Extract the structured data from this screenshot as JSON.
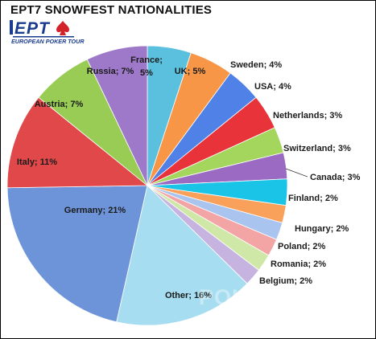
{
  "title": "EPT7 SNOWFEST NATIONALITIES",
  "logo": {
    "mark": "EPT",
    "tagline": "EUROPEAN POKER TOUR",
    "mark_color": "#1a3d8f",
    "accent_color": "#d2232a"
  },
  "watermark": "POKERNEWS",
  "chart_data": {
    "type": "pie",
    "title": "EPT7 SNOWFEST NATIONALITIES",
    "unit": "%",
    "slices": [
      {
        "label": "France",
        "value": 5,
        "color": "#5bc0de",
        "display": "France; 5%"
      },
      {
        "label": "UK",
        "value": 5,
        "color": "#f79646",
        "display": "UK; 5%"
      },
      {
        "label": "Sweden",
        "value": 4,
        "color": "#4f81e6",
        "display": "Sweden; 4%"
      },
      {
        "label": "USA",
        "value": 4,
        "color": "#e8333a",
        "display": "USA; 4%"
      },
      {
        "label": "Netherlands",
        "value": 3,
        "color": "#a4d65e",
        "display": "Netherlands; 3%"
      },
      {
        "label": "Switzerland",
        "value": 3,
        "color": "#9b6bc4",
        "display": "Switzerland; 3%"
      },
      {
        "label": "Canada",
        "value": 3,
        "color": "#19c4e6",
        "display": "Canada; 3%"
      },
      {
        "label": "Finland",
        "value": 2,
        "color": "#f9a15b",
        "display": "Finland; 2%"
      },
      {
        "label": "Hungary",
        "value": 2,
        "color": "#a9c4ef",
        "display": "Hungary; 2%"
      },
      {
        "label": "Poland",
        "value": 2,
        "color": "#f3a5a5",
        "display": "Poland; 2%"
      },
      {
        "label": "Romania",
        "value": 2,
        "color": "#cfe8a8",
        "display": "Romania; 2%"
      },
      {
        "label": "Belgium",
        "value": 2,
        "color": "#c6b3e0",
        "display": "Belgium; 2%"
      },
      {
        "label": "Other",
        "value": 16,
        "color": "#a6ddf0",
        "display": "Other; 16%"
      },
      {
        "label": "Germany",
        "value": 21,
        "color": "#6d94d9",
        "display": "Germany; 21%"
      },
      {
        "label": "Italy",
        "value": 11,
        "color": "#e0484a",
        "display": "Italy; 11%"
      },
      {
        "label": "Austria",
        "value": 7,
        "color": "#99cc55",
        "display": "Austria; 7%"
      },
      {
        "label": "Russia",
        "value": 7,
        "color": "#9e79c9",
        "display": "Russia; 7%"
      }
    ]
  }
}
